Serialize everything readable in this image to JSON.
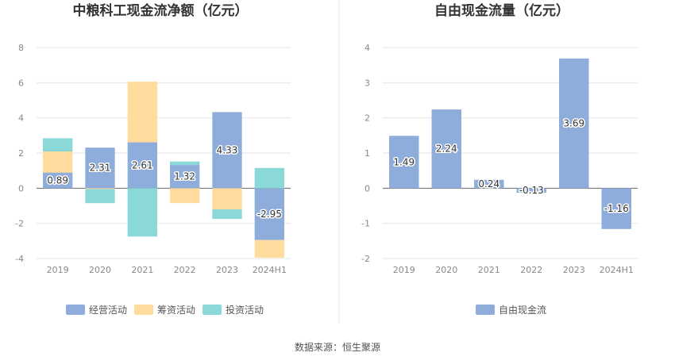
{
  "source": "数据来源：恒生聚源",
  "colors": {
    "operating": "#8eaddb",
    "financing": "#ffdc9e",
    "investing": "#8ad8d8",
    "free_cf": "#8eaddb",
    "grid": "#e6e6e6",
    "axis": "#666666",
    "divider": "#e8e8e8"
  },
  "chart_data": [
    {
      "type": "bar",
      "stacked": true,
      "title": "中粮科工现金流净额（亿元）",
      "categories": [
        "2019",
        "2020",
        "2021",
        "2022",
        "2023",
        "2024H1"
      ],
      "ylim": [
        -4,
        8
      ],
      "yticks": [
        "-4",
        "-2",
        "0",
        "2",
        "4",
        "6",
        "8"
      ],
      "grid": true,
      "legend": "bottom",
      "series": [
        {
          "name": "经营活动",
          "key": "operating",
          "values": [
            0.89,
            2.31,
            2.61,
            1.32,
            4.33,
            -2.95
          ],
          "labels": [
            "0.89",
            "2.31",
            "2.61",
            "1.32",
            "4.33",
            "-2.95"
          ]
        },
        {
          "name": "筹资活动",
          "key": "financing",
          "values": [
            1.2,
            -0.05,
            3.45,
            -0.85,
            -1.2,
            -1.0
          ]
        },
        {
          "name": "投资活动",
          "key": "investing",
          "values": [
            0.75,
            -0.8,
            -2.75,
            0.2,
            -0.55,
            1.15
          ]
        }
      ]
    },
    {
      "type": "bar",
      "title": "自由现金流量（亿元）",
      "categories": [
        "2019",
        "2020",
        "2021",
        "2022",
        "2023",
        "2024H1"
      ],
      "ylim": [
        -2,
        4
      ],
      "yticks": [
        "-2",
        "-1",
        "0",
        "1",
        "2",
        "3",
        "4"
      ],
      "grid": true,
      "legend": "bottom",
      "series": [
        {
          "name": "自由现金流",
          "key": "free_cf",
          "values": [
            1.49,
            2.24,
            0.24,
            -0.13,
            3.69,
            -1.16
          ],
          "labels": [
            "1.49",
            "2.24",
            "0.24",
            "-0.13",
            "3.69",
            "-1.16"
          ]
        }
      ]
    }
  ]
}
